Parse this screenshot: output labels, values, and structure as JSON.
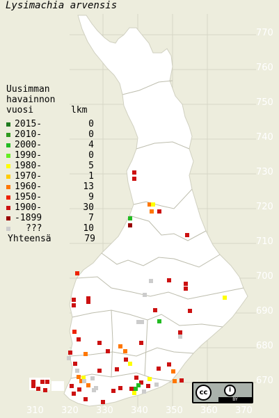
{
  "title": "Lysimachia arvensis",
  "legend": {
    "heading": [
      "Uusimman",
      "havainnon"
    ],
    "col_year": "vuosi",
    "col_count": "lkm",
    "rows": [
      {
        "label": "2015-",
        "count": "0",
        "color": "#1f7a1f"
      },
      {
        "label": "2010-",
        "count": "0",
        "color": "#2f9a1f"
      },
      {
        "label": "2000-",
        "count": "4",
        "color": "#22bb22"
      },
      {
        "label": "1990-",
        "count": "0",
        "color": "#66ee22"
      },
      {
        "label": "1980-",
        "count": "5",
        "color": "#ffff00"
      },
      {
        "label": "1970-",
        "count": "1",
        "color": "#ffcc00"
      },
      {
        "label": "1960-",
        "count": "13",
        "color": "#ff7700"
      },
      {
        "label": "1950-",
        "count": "9",
        "color": "#ee2200"
      },
      {
        "label": "1900-",
        "count": "30",
        "color": "#cc1111"
      },
      {
        "label": "-1899",
        "count": "7",
        "color": "#990000"
      },
      {
        "label": "???",
        "count": "10",
        "color": "#cccccc"
      }
    ],
    "total_label": "Yhteensä",
    "total": "79"
  },
  "y_axis": [
    "770",
    "760",
    "750",
    "740",
    "730",
    "720",
    "710",
    "700",
    "690",
    "680",
    "670"
  ],
  "x_axis": [
    "310",
    "320",
    "330",
    "340",
    "350",
    "360",
    "370"
  ],
  "license": {
    "cc": "cc",
    "by_icon": "i",
    "by": "BY"
  },
  "colors": {
    "background": "#ededdd",
    "land": "#ffffff",
    "grid": "#d8d8c8",
    "border": "#c8c8b8"
  }
}
